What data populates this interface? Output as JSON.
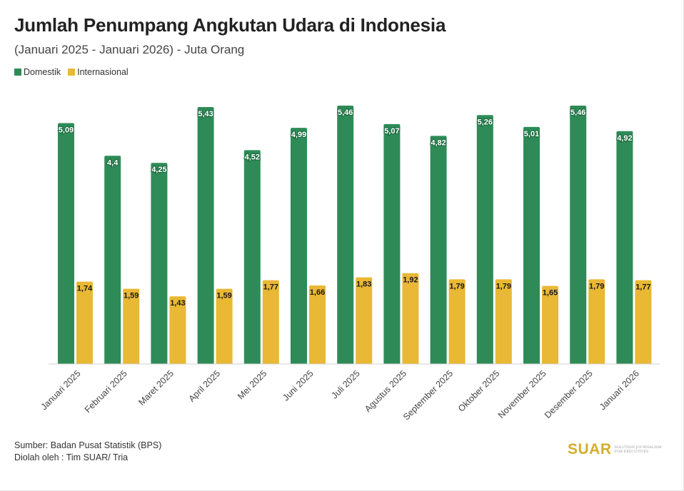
{
  "header": {
    "title": "Jumlah Penumpang Angkutan Udara di Indonesia",
    "subtitle": "(Januari 2025 - Januari 2026) - Juta Orang"
  },
  "legend": {
    "items": [
      {
        "label": "Domestik",
        "color": "#2e8b57"
      },
      {
        "label": "Internasional",
        "color": "#e9b834"
      }
    ]
  },
  "chart_data": {
    "type": "bar",
    "title": "Jumlah Penumpang Angkutan Udara di Indonesia",
    "subtitle": "(Januari 2025 - Januari 2026) - Juta Orang",
    "categories": [
      "Januari 2025",
      "Februari 2025",
      "Maret 2025",
      "April 2025",
      "Mei 2025",
      "Juni 2025",
      "Juli 2025",
      "Agustus 2025",
      "September 2025",
      "Oktober 2025",
      "November 2025",
      "Desember 2025",
      "Januari 2026"
    ],
    "series": [
      {
        "name": "Domestik",
        "color": "#2e8b57",
        "values": [
          5.09,
          4.4,
          4.25,
          5.43,
          4.52,
          4.99,
          5.46,
          5.07,
          4.82,
          5.26,
          5.01,
          5.46,
          4.92
        ],
        "labels": [
          "5,09",
          "4,4",
          "4,25",
          "5,43",
          "4,52",
          "4,99",
          "5,46",
          "5,07",
          "4,82",
          "5,26",
          "5,01",
          "5,46",
          "4,92"
        ]
      },
      {
        "name": "Internasional",
        "color": "#e9b834",
        "values": [
          1.74,
          1.59,
          1.43,
          1.59,
          1.77,
          1.66,
          1.83,
          1.92,
          1.79,
          1.79,
          1.65,
          1.79,
          1.77
        ],
        "labels": [
          "1,74",
          "1,59",
          "1,43",
          "1,59",
          "1,77",
          "1,66",
          "1,83",
          "1,92",
          "1,79",
          "1,79",
          "1,65",
          "1,79",
          "1,77"
        ]
      }
    ],
    "ylim": [
      0,
      5.6
    ],
    "grid": false,
    "legend_position": "top-left"
  },
  "footer": {
    "source": "Sumber: Badan Pusat Statistik (BPS)",
    "processed_by": "Diolah oleh : Tim SUAR/ Tria"
  },
  "logo": {
    "word": "SUAR",
    "tagline": "Solution Journalism for Executives"
  }
}
